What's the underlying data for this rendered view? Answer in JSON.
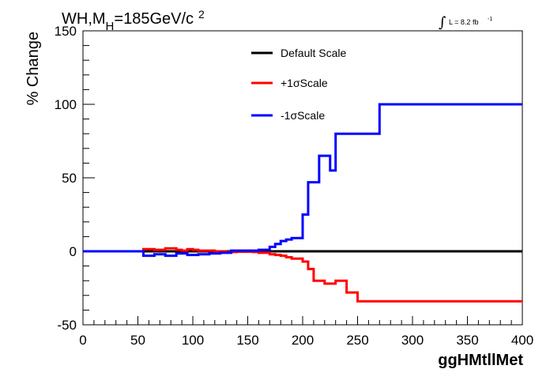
{
  "header": {
    "title_main": "WH,M",
    "title_sub": "H",
    "title_rest": "=185GeV/c",
    "title_sup": "2",
    "lumi_text": "L = 8.2 fb",
    "lumi_sup": "-1"
  },
  "chart_data": {
    "type": "line",
    "xlabel": "ggHMtllMet",
    "ylabel": "% Change",
    "xlim": [
      0,
      400
    ],
    "ylim": [
      -50,
      150
    ],
    "x_ticks": [
      0,
      50,
      100,
      150,
      200,
      250,
      300,
      350,
      400
    ],
    "y_ticks": [
      -50,
      0,
      50,
      100,
      150
    ],
    "grid": false,
    "legend_position": "top-center",
    "bin_edges": [
      0,
      5,
      10,
      15,
      20,
      25,
      30,
      35,
      40,
      45,
      50,
      55,
      60,
      65,
      70,
      75,
      80,
      85,
      90,
      95,
      100,
      105,
      110,
      115,
      120,
      125,
      130,
      135,
      140,
      145,
      150,
      155,
      160,
      165,
      170,
      175,
      180,
      185,
      190,
      195,
      200,
      205,
      210,
      215,
      220,
      225,
      230,
      235,
      240,
      245,
      250,
      255,
      260,
      265,
      270,
      275,
      280,
      285,
      290,
      295,
      300,
      305,
      310,
      315,
      320,
      325,
      330,
      335,
      340,
      345,
      350,
      355,
      360,
      365,
      370,
      375,
      380,
      385,
      390,
      395,
      400
    ],
    "series": [
      {
        "name": "Default Scale",
        "color": "#000000",
        "values": [
          0,
          0,
          0,
          0,
          0,
          0,
          0,
          0,
          0,
          0,
          0,
          0,
          0,
          0,
          0,
          0,
          0,
          0,
          0,
          0,
          0,
          0,
          0,
          0,
          0,
          0,
          0,
          0,
          0,
          0,
          0,
          0,
          0,
          0,
          0,
          0,
          0,
          0,
          0,
          0,
          0,
          0,
          0,
          0,
          0,
          0,
          0,
          0,
          0,
          0,
          0,
          0,
          0,
          0,
          0,
          0,
          0,
          0,
          0,
          0,
          0,
          0,
          0,
          0,
          0,
          0,
          0,
          0,
          0,
          0,
          0,
          0,
          0,
          0,
          0,
          0,
          0,
          0,
          0,
          0
        ]
      },
      {
        "name": "+1σScale",
        "color": "#ff0000",
        "values": [
          0,
          0,
          0,
          0,
          0,
          0,
          0,
          0,
          0,
          0,
          0,
          1.5,
          1.5,
          1,
          1,
          2,
          2,
          1,
          0.5,
          1.5,
          1,
          0.5,
          0.5,
          0.5,
          0,
          0,
          -0.5,
          -0.5,
          -0.3,
          -0.3,
          -0.3,
          -0.5,
          -1,
          -1,
          -2,
          -2.5,
          -3,
          -4,
          -5,
          -5,
          -7,
          -12,
          -20,
          -20,
          -22,
          -22,
          -20,
          -20,
          -28,
          -28,
          -34,
          -34,
          -34,
          -34,
          -34,
          -34,
          -34,
          -34,
          -34,
          -34,
          -34,
          -34,
          -34,
          -34,
          -34,
          -34,
          -34,
          -34,
          -34,
          -34,
          -34,
          -34,
          -34,
          -34,
          -34,
          -34,
          -34,
          -34,
          -34,
          -34
        ]
      },
      {
        "name": "-1σScale",
        "color": "#0000ff",
        "values": [
          0,
          0,
          0,
          0,
          0,
          0,
          0,
          0,
          0,
          0,
          0,
          -3,
          -3,
          -2,
          -2,
          -3,
          -3,
          -1.5,
          -1.5,
          -2.5,
          -2.5,
          -2,
          -2,
          -1.5,
          -1.5,
          -1,
          -1,
          0.5,
          0.5,
          0.5,
          0.5,
          0.5,
          1,
          1,
          3,
          5,
          7,
          8,
          9,
          9,
          25,
          47,
          47,
          65,
          65,
          55,
          80,
          80,
          80,
          80,
          80,
          80,
          80,
          80,
          100,
          100,
          100,
          100,
          100,
          100,
          100,
          100,
          100,
          100,
          100,
          100,
          100,
          100,
          100,
          100,
          100,
          100,
          100,
          100,
          100,
          100,
          100,
          100,
          100,
          100
        ]
      }
    ]
  }
}
